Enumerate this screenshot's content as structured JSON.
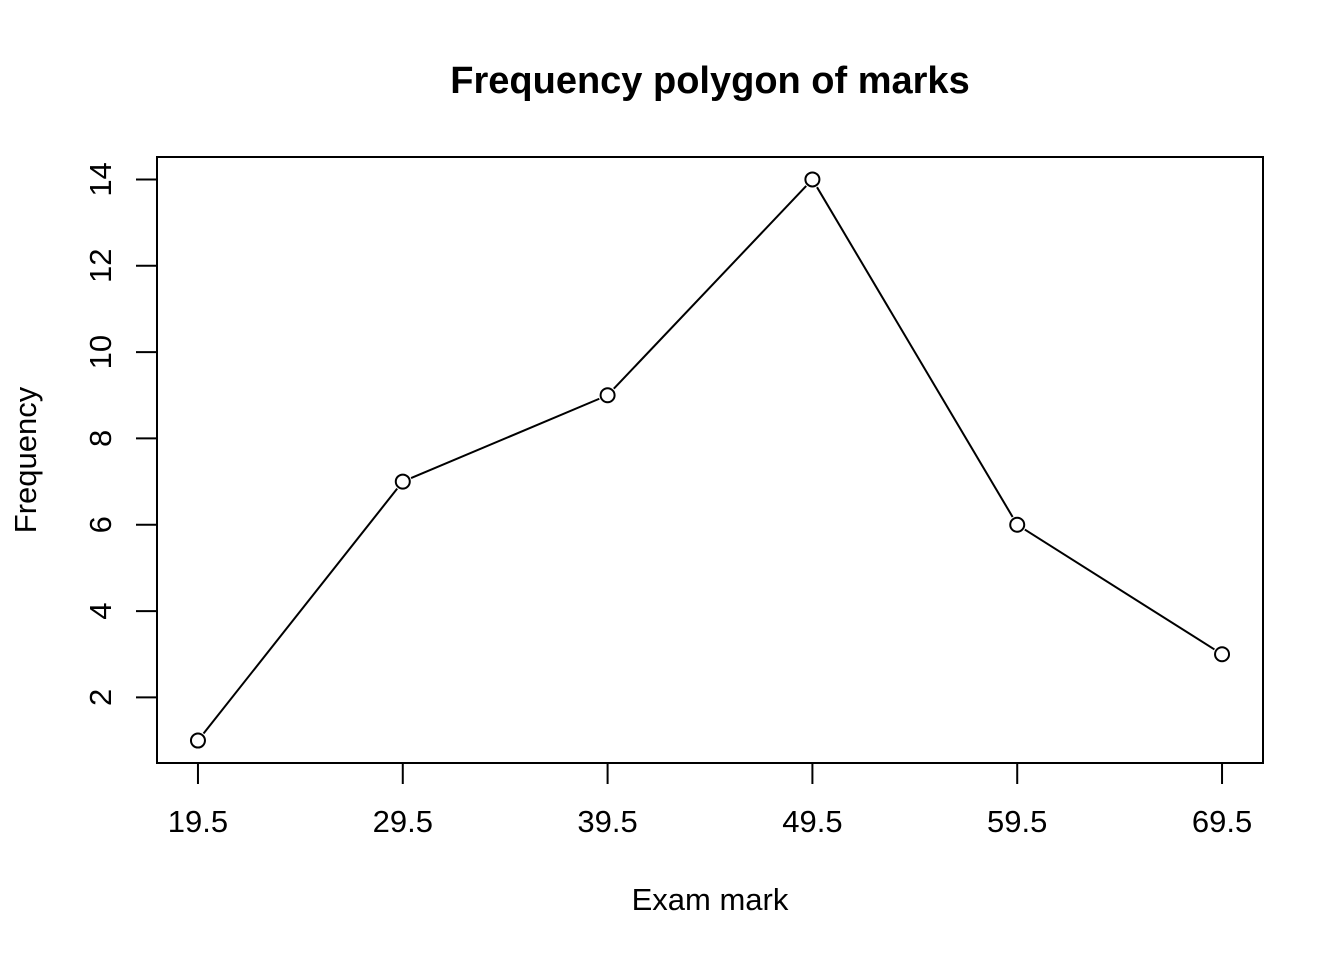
{
  "chart_data": {
    "type": "line",
    "title": "Frequency polygon of marks",
    "xlabel": "Exam mark",
    "ylabel": "Frequency",
    "x": [
      19.5,
      29.5,
      39.5,
      49.5,
      59.5,
      69.5
    ],
    "x_tick_labels": [
      "19.5",
      "29.5",
      "39.5",
      "49.5",
      "59.5",
      "69.5"
    ],
    "y_ticks": [
      2,
      4,
      6,
      8,
      10,
      12,
      14
    ],
    "y_tick_labels": [
      "2",
      "4",
      "6",
      "8",
      "10",
      "12",
      "14"
    ],
    "series": [
      {
        "values": [
          1,
          7,
          9,
          14,
          6,
          3
        ],
        "marker": "open-circle",
        "color": "#000000"
      }
    ],
    "xlim": [
      17.5,
      71.5
    ],
    "ylim": [
      0.48,
      14.52
    ],
    "grid": false,
    "legend": "none"
  }
}
